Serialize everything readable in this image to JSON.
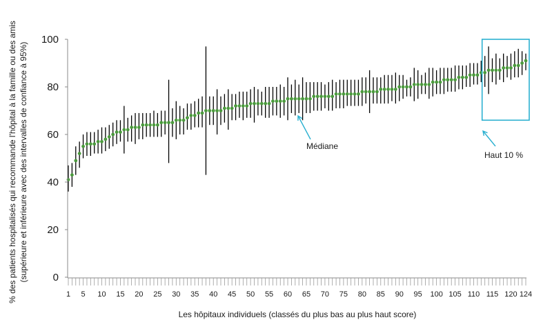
{
  "chart_data": {
    "type": "scatter",
    "ylabel_line1": "% des patients hospitalisés qui recommande l'hôpital à la famille ou des amis",
    "ylabel_line2": "(supérieure et inférieure avec des intervalles de confiance à 95%)",
    "xlabel": "Les hôpitaux individuels (classés du plus bas au plus haut score)",
    "ylim": [
      0,
      100
    ],
    "yticks": [
      0,
      20,
      40,
      60,
      80,
      100
    ],
    "x_range": [
      1,
      124
    ],
    "xtick_labels": [
      1,
      5,
      10,
      15,
      20,
      25,
      30,
      35,
      40,
      45,
      50,
      55,
      60,
      65,
      70,
      75,
      80,
      85,
      90,
      95,
      100,
      105,
      110,
      115,
      120,
      124
    ],
    "grid": false,
    "point_color": "#4a9a3c",
    "error_bar_color": "#000000",
    "annotation_color": "#2bb0d0",
    "annotations": {
      "median_label": "Médiane",
      "top10_label": "Haut 10 %"
    },
    "points": [
      {
        "x": 1,
        "y": 41,
        "lo": 36,
        "hi": 47
      },
      {
        "x": 2,
        "y": 43,
        "lo": 38,
        "hi": 48
      },
      {
        "x": 3,
        "y": 49,
        "lo": 43,
        "hi": 55
      },
      {
        "x": 4,
        "y": 52,
        "lo": 46,
        "hi": 57
      },
      {
        "x": 5,
        "y": 55,
        "lo": 50,
        "hi": 60
      },
      {
        "x": 6,
        "y": 56,
        "lo": 51,
        "hi": 61
      },
      {
        "x": 7,
        "y": 56,
        "lo": 51,
        "hi": 61
      },
      {
        "x": 8,
        "y": 56,
        "lo": 52,
        "hi": 61
      },
      {
        "x": 9,
        "y": 57,
        "lo": 52,
        "hi": 62
      },
      {
        "x": 10,
        "y": 57,
        "lo": 52,
        "hi": 63
      },
      {
        "x": 11,
        "y": 58,
        "lo": 53,
        "hi": 63
      },
      {
        "x": 12,
        "y": 59,
        "lo": 54,
        "hi": 64
      },
      {
        "x": 13,
        "y": 60,
        "lo": 55,
        "hi": 65
      },
      {
        "x": 14,
        "y": 61,
        "lo": 56,
        "hi": 66
      },
      {
        "x": 15,
        "y": 61,
        "lo": 57,
        "hi": 66
      },
      {
        "x": 16,
        "y": 62,
        "lo": 52,
        "hi": 72
      },
      {
        "x": 17,
        "y": 62,
        "lo": 57,
        "hi": 67
      },
      {
        "x": 18,
        "y": 63,
        "lo": 57,
        "hi": 68
      },
      {
        "x": 19,
        "y": 63,
        "lo": 56,
        "hi": 69
      },
      {
        "x": 20,
        "y": 63,
        "lo": 58,
        "hi": 69
      },
      {
        "x": 21,
        "y": 64,
        "lo": 58,
        "hi": 69
      },
      {
        "x": 22,
        "y": 64,
        "lo": 59,
        "hi": 69
      },
      {
        "x": 23,
        "y": 64,
        "lo": 59,
        "hi": 69
      },
      {
        "x": 24,
        "y": 64,
        "lo": 59,
        "hi": 70
      },
      {
        "x": 25,
        "y": 64,
        "lo": 59,
        "hi": 69
      },
      {
        "x": 26,
        "y": 65,
        "lo": 59,
        "hi": 70
      },
      {
        "x": 27,
        "y": 65,
        "lo": 60,
        "hi": 70
      },
      {
        "x": 28,
        "y": 65,
        "lo": 48,
        "hi": 83
      },
      {
        "x": 29,
        "y": 65,
        "lo": 59,
        "hi": 71
      },
      {
        "x": 30,
        "y": 66,
        "lo": 58,
        "hi": 74
      },
      {
        "x": 31,
        "y": 66,
        "lo": 60,
        "hi": 72
      },
      {
        "x": 32,
        "y": 66,
        "lo": 60,
        "hi": 71
      },
      {
        "x": 33,
        "y": 67,
        "lo": 62,
        "hi": 73
      },
      {
        "x": 34,
        "y": 68,
        "lo": 62,
        "hi": 73
      },
      {
        "x": 35,
        "y": 68,
        "lo": 63,
        "hi": 74
      },
      {
        "x": 36,
        "y": 69,
        "lo": 63,
        "hi": 75
      },
      {
        "x": 37,
        "y": 69,
        "lo": 63,
        "hi": 76
      },
      {
        "x": 38,
        "y": 70,
        "lo": 43,
        "hi": 97
      },
      {
        "x": 39,
        "y": 70,
        "lo": 64,
        "hi": 76
      },
      {
        "x": 40,
        "y": 70,
        "lo": 64,
        "hi": 76
      },
      {
        "x": 41,
        "y": 70,
        "lo": 60,
        "hi": 79
      },
      {
        "x": 42,
        "y": 70,
        "lo": 64,
        "hi": 76
      },
      {
        "x": 43,
        "y": 71,
        "lo": 65,
        "hi": 77
      },
      {
        "x": 44,
        "y": 71,
        "lo": 62,
        "hi": 79
      },
      {
        "x": 45,
        "y": 71,
        "lo": 66,
        "hi": 77
      },
      {
        "x": 46,
        "y": 72,
        "lo": 66,
        "hi": 77
      },
      {
        "x": 47,
        "y": 72,
        "lo": 67,
        "hi": 78
      },
      {
        "x": 48,
        "y": 72,
        "lo": 66,
        "hi": 78
      },
      {
        "x": 49,
        "y": 72,
        "lo": 67,
        "hi": 78
      },
      {
        "x": 50,
        "y": 73,
        "lo": 67,
        "hi": 79
      },
      {
        "x": 51,
        "y": 73,
        "lo": 65,
        "hi": 80
      },
      {
        "x": 52,
        "y": 73,
        "lo": 68,
        "hi": 79
      },
      {
        "x": 53,
        "y": 73,
        "lo": 68,
        "hi": 78
      },
      {
        "x": 54,
        "y": 73,
        "lo": 67,
        "hi": 80
      },
      {
        "x": 55,
        "y": 73,
        "lo": 67,
        "hi": 80
      },
      {
        "x": 56,
        "y": 74,
        "lo": 68,
        "hi": 80
      },
      {
        "x": 57,
        "y": 74,
        "lo": 68,
        "hi": 80
      },
      {
        "x": 58,
        "y": 74,
        "lo": 67,
        "hi": 81
      },
      {
        "x": 59,
        "y": 74,
        "lo": 68,
        "hi": 80
      },
      {
        "x": 60,
        "y": 75,
        "lo": 66,
        "hi": 84
      },
      {
        "x": 61,
        "y": 75,
        "lo": 69,
        "hi": 81
      },
      {
        "x": 62,
        "y": 75,
        "lo": 68,
        "hi": 83
      },
      {
        "x": 63,
        "y": 75,
        "lo": 69,
        "hi": 81
      },
      {
        "x": 64,
        "y": 75,
        "lo": 66,
        "hi": 84
      },
      {
        "x": 65,
        "y": 75,
        "lo": 69,
        "hi": 82
      },
      {
        "x": 66,
        "y": 75,
        "lo": 69,
        "hi": 82
      },
      {
        "x": 67,
        "y": 76,
        "lo": 70,
        "hi": 82
      },
      {
        "x": 68,
        "y": 76,
        "lo": 70,
        "hi": 82
      },
      {
        "x": 69,
        "y": 76,
        "lo": 70,
        "hi": 82
      },
      {
        "x": 70,
        "y": 76,
        "lo": 71,
        "hi": 81
      },
      {
        "x": 71,
        "y": 76,
        "lo": 70,
        "hi": 82
      },
      {
        "x": 72,
        "y": 76,
        "lo": 70,
        "hi": 83
      },
      {
        "x": 73,
        "y": 77,
        "lo": 71,
        "hi": 82
      },
      {
        "x": 74,
        "y": 77,
        "lo": 71,
        "hi": 83
      },
      {
        "x": 75,
        "y": 77,
        "lo": 71,
        "hi": 83
      },
      {
        "x": 76,
        "y": 77,
        "lo": 72,
        "hi": 83
      },
      {
        "x": 77,
        "y": 77,
        "lo": 72,
        "hi": 83
      },
      {
        "x": 78,
        "y": 77,
        "lo": 72,
        "hi": 83
      },
      {
        "x": 79,
        "y": 77,
        "lo": 72,
        "hi": 83
      },
      {
        "x": 80,
        "y": 78,
        "lo": 72,
        "hi": 84
      },
      {
        "x": 81,
        "y": 78,
        "lo": 73,
        "hi": 84
      },
      {
        "x": 82,
        "y": 78,
        "lo": 69,
        "hi": 87
      },
      {
        "x": 83,
        "y": 78,
        "lo": 73,
        "hi": 84
      },
      {
        "x": 84,
        "y": 78,
        "lo": 73,
        "hi": 84
      },
      {
        "x": 85,
        "y": 79,
        "lo": 73,
        "hi": 84
      },
      {
        "x": 86,
        "y": 79,
        "lo": 73,
        "hi": 85
      },
      {
        "x": 87,
        "y": 79,
        "lo": 73,
        "hi": 85
      },
      {
        "x": 88,
        "y": 79,
        "lo": 74,
        "hi": 85
      },
      {
        "x": 89,
        "y": 79,
        "lo": 73,
        "hi": 86
      },
      {
        "x": 90,
        "y": 80,
        "lo": 74,
        "hi": 85
      },
      {
        "x": 91,
        "y": 80,
        "lo": 75,
        "hi": 85
      },
      {
        "x": 92,
        "y": 80,
        "lo": 76,
        "hi": 83
      },
      {
        "x": 93,
        "y": 80,
        "lo": 76,
        "hi": 84
      },
      {
        "x": 94,
        "y": 81,
        "lo": 74,
        "hi": 88
      },
      {
        "x": 95,
        "y": 81,
        "lo": 75,
        "hi": 87
      },
      {
        "x": 96,
        "y": 81,
        "lo": 77,
        "hi": 85
      },
      {
        "x": 97,
        "y": 81,
        "lo": 77,
        "hi": 86
      },
      {
        "x": 98,
        "y": 81,
        "lo": 75,
        "hi": 88
      },
      {
        "x": 99,
        "y": 82,
        "lo": 76,
        "hi": 88
      },
      {
        "x": 100,
        "y": 82,
        "lo": 77,
        "hi": 87
      },
      {
        "x": 101,
        "y": 82,
        "lo": 77,
        "hi": 88
      },
      {
        "x": 102,
        "y": 83,
        "lo": 77,
        "hi": 88
      },
      {
        "x": 103,
        "y": 83,
        "lo": 78,
        "hi": 88
      },
      {
        "x": 104,
        "y": 83,
        "lo": 78,
        "hi": 88
      },
      {
        "x": 105,
        "y": 83,
        "lo": 78,
        "hi": 89
      },
      {
        "x": 106,
        "y": 84,
        "lo": 79,
        "hi": 89
      },
      {
        "x": 107,
        "y": 84,
        "lo": 79,
        "hi": 89
      },
      {
        "x": 108,
        "y": 84,
        "lo": 80,
        "hi": 89
      },
      {
        "x": 109,
        "y": 85,
        "lo": 80,
        "hi": 90
      },
      {
        "x": 110,
        "y": 85,
        "lo": 81,
        "hi": 90
      },
      {
        "x": 111,
        "y": 85,
        "lo": 81,
        "hi": 90
      },
      {
        "x": 112,
        "y": 86,
        "lo": 82,
        "hi": 91
      },
      {
        "x": 113,
        "y": 86,
        "lo": 80,
        "hi": 93
      },
      {
        "x": 114,
        "y": 87,
        "lo": 77,
        "hi": 97
      },
      {
        "x": 115,
        "y": 87,
        "lo": 82,
        "hi": 92
      },
      {
        "x": 116,
        "y": 87,
        "lo": 81,
        "hi": 94
      },
      {
        "x": 117,
        "y": 87,
        "lo": 83,
        "hi": 92
      },
      {
        "x": 118,
        "y": 88,
        "lo": 82,
        "hi": 94
      },
      {
        "x": 119,
        "y": 88,
        "lo": 84,
        "hi": 93
      },
      {
        "x": 120,
        "y": 88,
        "lo": 83,
        "hi": 94
      },
      {
        "x": 121,
        "y": 89,
        "lo": 84,
        "hi": 95
      },
      {
        "x": 122,
        "y": 89,
        "lo": 84,
        "hi": 96
      },
      {
        "x": 123,
        "y": 90,
        "lo": 85,
        "hi": 95
      },
      {
        "x": 124,
        "y": 91,
        "lo": 87,
        "hi": 94
      }
    ]
  }
}
